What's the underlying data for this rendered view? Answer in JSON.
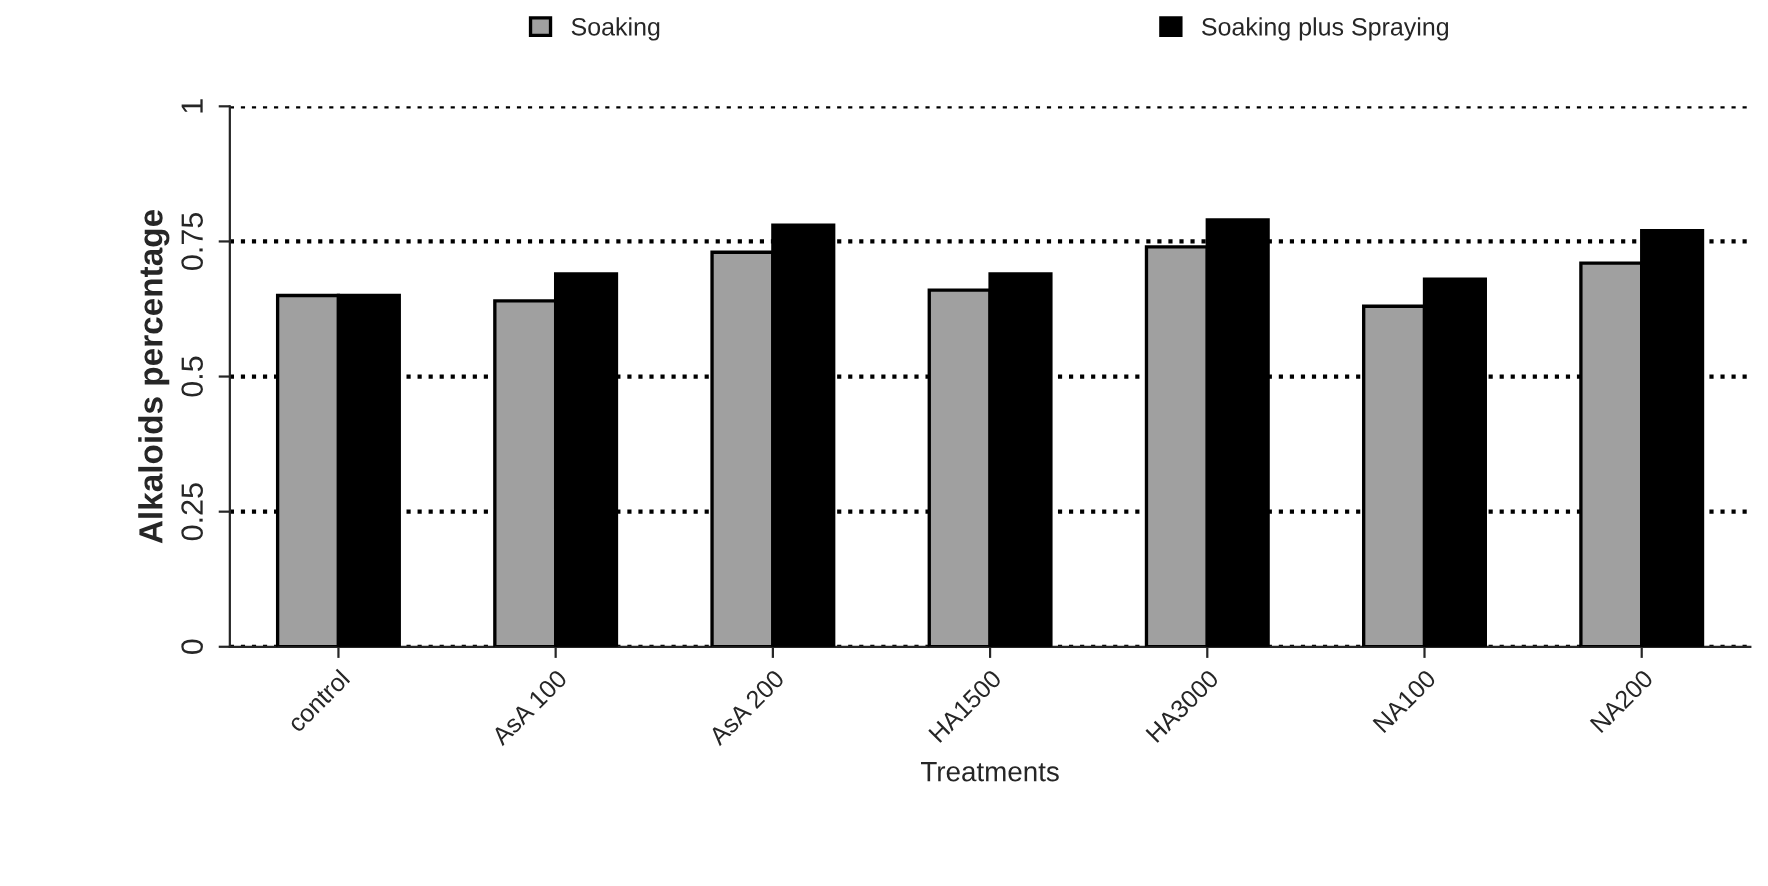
{
  "chart_data": {
    "type": "bar",
    "xlabel": "Treatments",
    "ylabel": "Alkaloids percentage",
    "categories": [
      "control",
      "AsA 100",
      "AsA 200",
      "HA1500",
      "HA3000",
      "NA100",
      "NA200"
    ],
    "series": [
      {
        "name": "Soaking",
        "color": "#a0a0a0",
        "values": [
          0.65,
          0.64,
          0.73,
          0.66,
          0.74,
          0.63,
          0.71
        ]
      },
      {
        "name": "Soaking plus Spraying",
        "color": "#000000",
        "values": [
          0.65,
          0.69,
          0.78,
          0.69,
          0.79,
          0.68,
          0.77
        ]
      }
    ],
    "ylim": [
      0,
      1
    ],
    "yticks": [
      0,
      0.25,
      0.5,
      0.75,
      1
    ],
    "grid": "y",
    "line_style": "dotted",
    "legend": "top"
  }
}
